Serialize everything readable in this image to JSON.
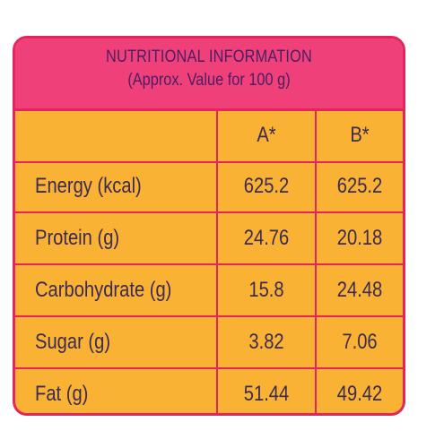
{
  "title": "NUTRITIONAL INFORMATION",
  "subtitle": "(Approx. Value for 100 g)",
  "columns": [
    "A*",
    "B*"
  ],
  "rows": [
    {
      "name": "Energy (kcal)",
      "a": "625.2",
      "b": "625.2"
    },
    {
      "name": "Protein (g)",
      "a": "24.76",
      "b": "20.18"
    },
    {
      "name": "Carbohydrate (g)",
      "a": "15.8",
      "b": "24.48"
    },
    {
      "name": "Sugar (g)",
      "a": "3.82",
      "b": "7.06"
    },
    {
      "name": "Fat (g)",
      "a": "51.44",
      "b": "49.42"
    }
  ],
  "colors": {
    "background": "#f9b234",
    "header": "#f0407a",
    "border": "#e3245f",
    "text": "#3b2a52"
  }
}
